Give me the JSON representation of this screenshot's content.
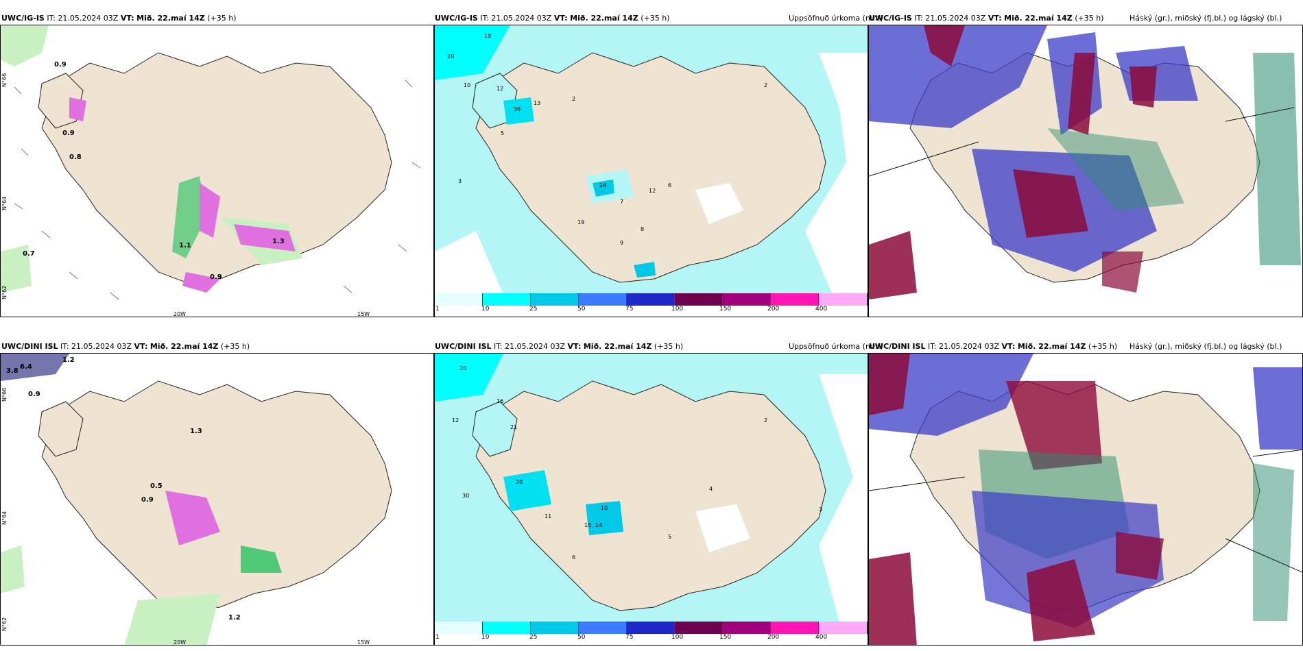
{
  "rows": [
    {
      "model": "UWC/IG-IS",
      "it_label": "IT:",
      "it_value": "21.05.2024 03Z",
      "vt_label": "VT:",
      "vt_value": "Mið. 22.maí 14Z",
      "lead": "(+35 h)",
      "precip_title": "Uppsöfnuð úrkoma (mm)",
      "cloud_title": "Háský (gr.), miðský (fj.bl.) og lágský (bl.)",
      "wind_numbers": [
        "0.9",
        "0.9",
        "0.8",
        "0.7",
        "1.3",
        "1.1",
        "0.9"
      ],
      "precip_numbers": [
        "20",
        "19",
        "10",
        "12",
        "36",
        "13",
        "2",
        "5",
        "3",
        "24",
        "12",
        "19",
        "7",
        "6",
        "8",
        "9",
        "2"
      ],
      "lat_labels": [
        "N°66",
        "N°64",
        "N°62"
      ],
      "lon_labels": [
        "20W",
        "15W"
      ]
    },
    {
      "model": "UWC/DINI ISL",
      "it_label": "IT:",
      "it_value": "21.05.2024 03Z",
      "vt_label": "VT:",
      "vt_value": "Mið. 22.maí 14Z",
      "lead": "(+35 h)",
      "precip_title": "Uppsöfnuð úrkoma (mm)",
      "cloud_title": "Háský (gr.), miðský (fj.bl.) og lágský (bl.)",
      "wind_numbers": [
        "3.8",
        "6.4",
        "1.2",
        "0.9",
        "1.3",
        "0.5",
        "0.9",
        "1.2"
      ],
      "precip_numbers": [
        "20",
        "16",
        "12",
        "21",
        "30",
        "20",
        "10",
        "15",
        "14",
        "11",
        "6",
        "5",
        "4",
        "3",
        "2"
      ],
      "lat_labels": [
        "N°66",
        "N°64",
        "N°62"
      ],
      "lon_labels": [
        "20W",
        "15W"
      ]
    }
  ],
  "colorbar": {
    "ticks": [
      "1",
      "10",
      "25",
      "50",
      "75",
      "100",
      "150",
      "200",
      "400"
    ],
    "colors": [
      "#e6ffff",
      "#00ffff",
      "#00c8e6",
      "#3c7bff",
      "#1e28c8",
      "#6e0050",
      "#a0007a",
      "#ff14b4",
      "#ffaaf5"
    ]
  },
  "colors": {
    "land": "#efe4d2",
    "sea_bg": "#ffffff",
    "precip_light": "#b4f5f5",
    "green_light": "#c8f0c0",
    "green": "#50c878",
    "magenta": "#e070e0",
    "high_cloud": "#2a8c6e",
    "mid_cloud": "#8c0a3c",
    "low_cloud": "#3c3cc8"
  }
}
